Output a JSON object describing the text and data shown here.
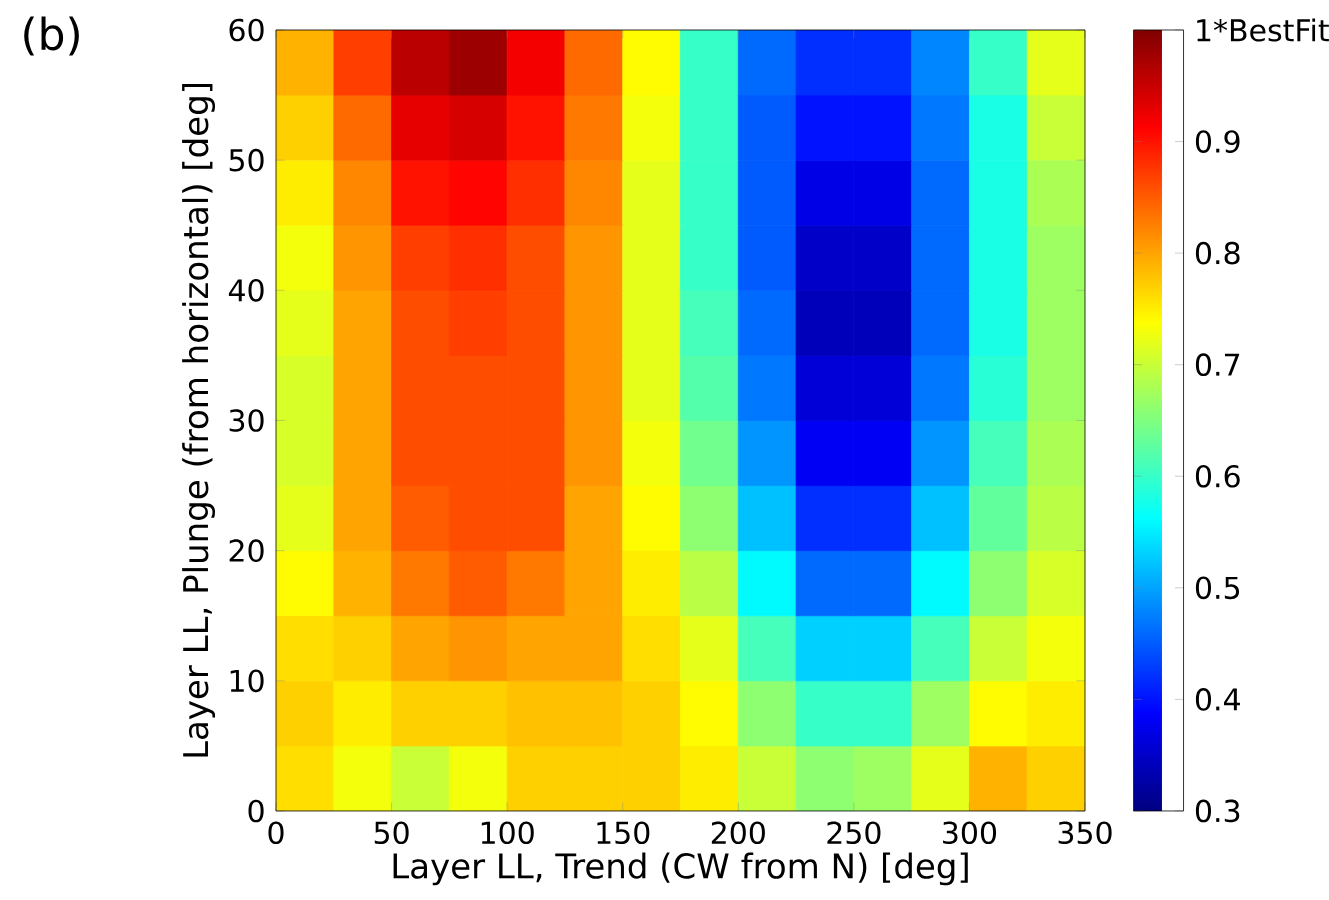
{
  "chart_data": {
    "type": "heatmap",
    "xlabel": "Layer LL, Trend (CW from N) [deg]",
    "ylabel": "Layer LL, Plunge (from horizontal) [deg]",
    "annotations": [
      "(b)"
    ],
    "xlim": [
      0,
      350
    ],
    "ylim": [
      0,
      60
    ],
    "xticks": [
      0,
      50,
      100,
      150,
      200,
      250,
      300,
      350
    ],
    "yticks": [
      0,
      10,
      20,
      30,
      40,
      50,
      60
    ],
    "clim": [
      0.3,
      1
    ],
    "cticks": [
      0.3,
      0.4,
      0.5,
      0.6,
      0.7,
      0.8,
      0.9,
      {
        "value": 1,
        "label": "1*BestFit"
      }
    ],
    "cells": [
      [
        0.79,
        0.87,
        0.96,
        0.98,
        0.92,
        0.84,
        0.74,
        0.6,
        0.46,
        0.42,
        0.42,
        0.48,
        0.6,
        0.72
      ],
      [
        0.77,
        0.84,
        0.93,
        0.94,
        0.9,
        0.83,
        0.73,
        0.6,
        0.45,
        0.4,
        0.4,
        0.47,
        0.58,
        0.7
      ],
      [
        0.75,
        0.82,
        0.9,
        0.91,
        0.88,
        0.82,
        0.72,
        0.6,
        0.45,
        0.37,
        0.37,
        0.46,
        0.58,
        0.68
      ],
      [
        0.73,
        0.81,
        0.87,
        0.88,
        0.86,
        0.81,
        0.72,
        0.6,
        0.45,
        0.35,
        0.35,
        0.46,
        0.58,
        0.67
      ],
      [
        0.72,
        0.8,
        0.86,
        0.87,
        0.86,
        0.81,
        0.72,
        0.61,
        0.46,
        0.34,
        0.34,
        0.46,
        0.58,
        0.67
      ],
      [
        0.71,
        0.8,
        0.86,
        0.86,
        0.86,
        0.81,
        0.72,
        0.62,
        0.47,
        0.36,
        0.36,
        0.47,
        0.59,
        0.67
      ],
      [
        0.71,
        0.8,
        0.86,
        0.86,
        0.86,
        0.81,
        0.73,
        0.64,
        0.49,
        0.38,
        0.38,
        0.49,
        0.61,
        0.68
      ],
      [
        0.72,
        0.8,
        0.85,
        0.86,
        0.86,
        0.8,
        0.74,
        0.66,
        0.52,
        0.42,
        0.42,
        0.52,
        0.63,
        0.69
      ],
      [
        0.74,
        0.79,
        0.83,
        0.85,
        0.83,
        0.8,
        0.75,
        0.69,
        0.56,
        0.46,
        0.46,
        0.56,
        0.66,
        0.71
      ],
      [
        0.76,
        0.77,
        0.8,
        0.81,
        0.8,
        0.8,
        0.76,
        0.72,
        0.61,
        0.53,
        0.53,
        0.61,
        0.7,
        0.73
      ],
      [
        0.77,
        0.75,
        0.77,
        0.77,
        0.78,
        0.78,
        0.77,
        0.74,
        0.66,
        0.6,
        0.6,
        0.67,
        0.74,
        0.75
      ],
      [
        0.76,
        0.73,
        0.7,
        0.73,
        0.77,
        0.77,
        0.77,
        0.75,
        0.7,
        0.66,
        0.67,
        0.72,
        0.79,
        0.77
      ]
    ]
  }
}
